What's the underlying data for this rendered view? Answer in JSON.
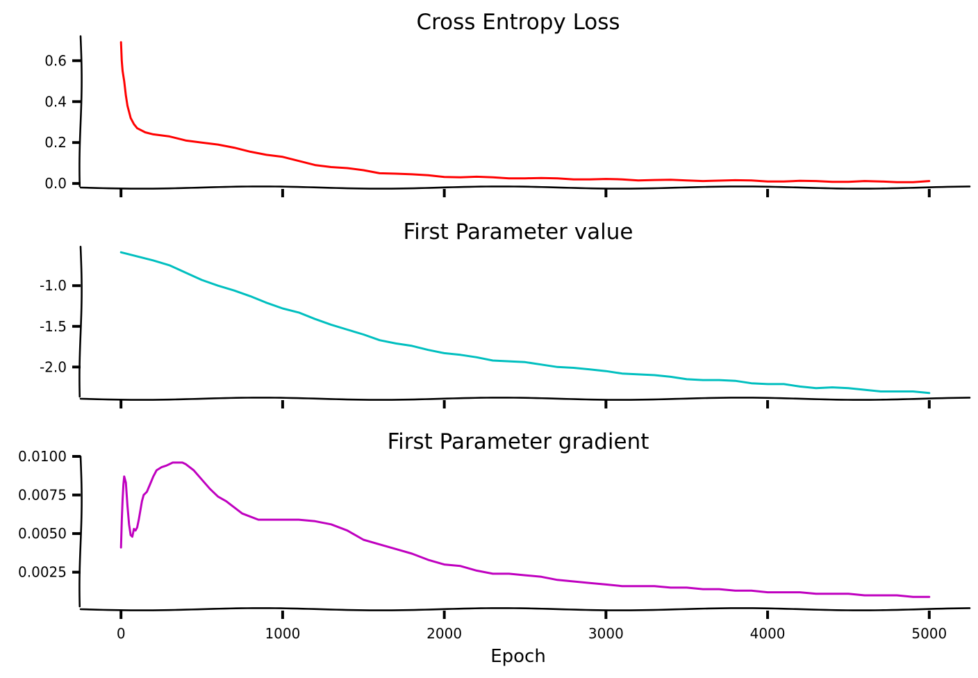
{
  "chart_data": [
    {
      "type": "line",
      "title": "Cross Entropy Loss",
      "xlabel": "",
      "ylabel": "",
      "xlim": [
        -250,
        5250
      ],
      "ylim": [
        -0.02,
        0.72
      ],
      "xticks": [
        0,
        1000,
        2000,
        3000,
        4000,
        5000
      ],
      "xtick_labels_shown": false,
      "yticks": [
        0.0,
        0.2,
        0.4,
        0.6
      ],
      "ytick_labels": [
        "0.0",
        "0.2",
        "0.4",
        "0.6"
      ],
      "color": "#ff0000",
      "series": [
        {
          "x": [
            0,
            5,
            10,
            20,
            30,
            40,
            50,
            60,
            80,
            100,
            150,
            200,
            300,
            400,
            500,
            600,
            700,
            800,
            900,
            1000,
            1100,
            1200,
            1300,
            1400,
            1500,
            1600,
            1700,
            1800,
            1900,
            2000,
            2100,
            2200,
            2300,
            2400,
            2500,
            2600,
            2700,
            2800,
            2900,
            3000,
            3100,
            3200,
            3300,
            3400,
            3500,
            3600,
            3700,
            3800,
            3900,
            4000,
            4100,
            4200,
            4300,
            4400,
            4500,
            4600,
            4700,
            4800,
            4900,
            5000
          ],
          "y": [
            0.69,
            0.6,
            0.55,
            0.5,
            0.43,
            0.38,
            0.35,
            0.32,
            0.29,
            0.27,
            0.25,
            0.24,
            0.23,
            0.21,
            0.2,
            0.19,
            0.175,
            0.155,
            0.14,
            0.13,
            0.11,
            0.09,
            0.08,
            0.075,
            0.065,
            0.05,
            0.048,
            0.045,
            0.04,
            0.032,
            0.03,
            0.033,
            0.03,
            0.025,
            0.025,
            0.027,
            0.025,
            0.02,
            0.02,
            0.022,
            0.02,
            0.015,
            0.017,
            0.018,
            0.015,
            0.012,
            0.014,
            0.016,
            0.015,
            0.01,
            0.01,
            0.013,
            0.012,
            0.008,
            0.008,
            0.012,
            0.01,
            0.006,
            0.006,
            0.012
          ]
        }
      ]
    },
    {
      "type": "line",
      "title": "First Parameter value",
      "xlabel": "",
      "ylabel": "",
      "xlim": [
        -250,
        5250
      ],
      "ylim": [
        -2.39,
        -0.52
      ],
      "xticks": [
        0,
        1000,
        2000,
        3000,
        4000,
        5000
      ],
      "xtick_labels_shown": false,
      "yticks": [
        -1.0,
        -1.5,
        -2.0
      ],
      "ytick_labels": [
        "-1.0",
        "-1.5",
        "-2.0"
      ],
      "color": "#00bfbf",
      "series": [
        {
          "x": [
            0,
            100,
            200,
            300,
            400,
            500,
            600,
            700,
            800,
            900,
            1000,
            1100,
            1200,
            1300,
            1400,
            1500,
            1600,
            1700,
            1800,
            1900,
            2000,
            2100,
            2200,
            2300,
            2400,
            2500,
            2600,
            2700,
            2800,
            2900,
            3000,
            3100,
            3200,
            3300,
            3400,
            3500,
            3600,
            3700,
            3800,
            3900,
            4000,
            4100,
            4200,
            4300,
            4400,
            4500,
            4600,
            4700,
            4800,
            4900,
            5000
          ],
          "y": [
            -0.59,
            -0.64,
            -0.69,
            -0.75,
            -0.84,
            -0.93,
            -1.0,
            -1.06,
            -1.13,
            -1.21,
            -1.28,
            -1.33,
            -1.41,
            -1.48,
            -1.54,
            -1.6,
            -1.67,
            -1.71,
            -1.74,
            -1.79,
            -1.83,
            -1.85,
            -1.88,
            -1.92,
            -1.93,
            -1.94,
            -1.97,
            -2.0,
            -2.01,
            -2.03,
            -2.05,
            -2.08,
            -2.09,
            -2.1,
            -2.12,
            -2.15,
            -2.16,
            -2.16,
            -2.17,
            -2.2,
            -2.21,
            -2.21,
            -2.24,
            -2.26,
            -2.25,
            -2.26,
            -2.28,
            -2.3,
            -2.3,
            -2.3,
            -2.32
          ]
        }
      ]
    },
    {
      "type": "line",
      "title": "First Parameter gradient",
      "xlabel": "Epoch",
      "ylabel": "",
      "xlim": [
        -250,
        5250
      ],
      "ylim": [
        0.0001,
        0.01
      ],
      "xticks": [
        0,
        1000,
        2000,
        3000,
        4000,
        5000
      ],
      "xtick_labels": [
        "0",
        "1000",
        "2000",
        "3000",
        "4000",
        "5000"
      ],
      "yticks": [
        0.0025,
        0.005,
        0.0075,
        0.01
      ],
      "ytick_labels": [
        "0.0025",
        "0.0050",
        "0.0075",
        "0.0100"
      ],
      "color": "#bf00bf",
      "series": [
        {
          "x": [
            0,
            5,
            10,
            15,
            20,
            30,
            40,
            50,
            60,
            70,
            80,
            90,
            100,
            110,
            120,
            130,
            140,
            150,
            160,
            180,
            200,
            220,
            250,
            280,
            300,
            320,
            350,
            380,
            400,
            450,
            500,
            550,
            600,
            650,
            700,
            750,
            800,
            850,
            900,
            950,
            1000,
            1100,
            1200,
            1300,
            1400,
            1500,
            1600,
            1700,
            1800,
            1900,
            2000,
            2100,
            2200,
            2300,
            2400,
            2500,
            2600,
            2700,
            2800,
            2900,
            3000,
            3100,
            3200,
            3300,
            3400,
            3500,
            3600,
            3700,
            3800,
            3900,
            4000,
            4100,
            4200,
            4300,
            4400,
            4500,
            4600,
            4700,
            4800,
            4900,
            5000
          ],
          "y": [
            0.0041,
            0.0058,
            0.0072,
            0.0082,
            0.0087,
            0.0083,
            0.0068,
            0.0056,
            0.0049,
            0.0048,
            0.0053,
            0.0052,
            0.0054,
            0.0059,
            0.0065,
            0.0071,
            0.0075,
            0.0076,
            0.0077,
            0.0082,
            0.0087,
            0.0091,
            0.0093,
            0.0094,
            0.0095,
            0.0096,
            0.0096,
            0.0096,
            0.0095,
            0.0091,
            0.0085,
            0.0079,
            0.0074,
            0.0071,
            0.0067,
            0.0063,
            0.0061,
            0.0059,
            0.0059,
            0.0059,
            0.0059,
            0.0059,
            0.0058,
            0.0056,
            0.0052,
            0.0046,
            0.0043,
            0.004,
            0.0037,
            0.0033,
            0.003,
            0.0029,
            0.0026,
            0.0024,
            0.0024,
            0.0023,
            0.0022,
            0.002,
            0.0019,
            0.0018,
            0.0017,
            0.0016,
            0.0016,
            0.0016,
            0.0015,
            0.0015,
            0.0014,
            0.0014,
            0.0013,
            0.0013,
            0.0012,
            0.0012,
            0.0012,
            0.0011,
            0.0011,
            0.0011,
            0.001,
            0.001,
            0.001,
            0.0009,
            0.0009
          ]
        }
      ]
    }
  ]
}
